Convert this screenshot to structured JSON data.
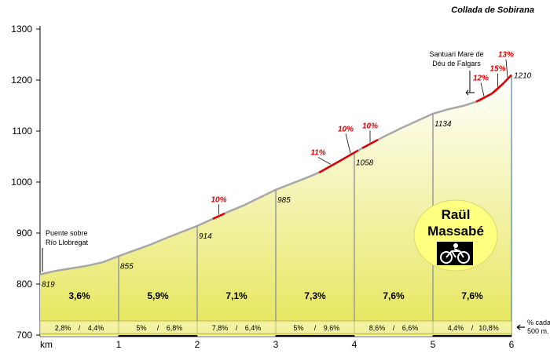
{
  "chart_data": {
    "type": "area",
    "title": "Collada de Sobirana",
    "xlabel": "km",
    "ylim": [
      700,
      1300
    ],
    "xlim": [
      0,
      6
    ],
    "y_ticks": [
      "700",
      "800",
      "900",
      "1000",
      "1100",
      "1200",
      "1300"
    ],
    "x_ticks": [
      "1",
      "2",
      "3",
      "4",
      "5",
      "6"
    ],
    "profile": [
      [
        0,
        819
      ],
      [
        0.2,
        826
      ],
      [
        0.4,
        831
      ],
      [
        0.6,
        836
      ],
      [
        0.8,
        843
      ],
      [
        1,
        855
      ],
      [
        1.2,
        866
      ],
      [
        1.4,
        877
      ],
      [
        1.6,
        890
      ],
      [
        1.8,
        902
      ],
      [
        2,
        914
      ],
      [
        2.2,
        928
      ],
      [
        2.4,
        942
      ],
      [
        2.6,
        955
      ],
      [
        2.8,
        970
      ],
      [
        3,
        985
      ],
      [
        3.2,
        997
      ],
      [
        3.4,
        1009
      ],
      [
        3.6,
        1022
      ],
      [
        3.8,
        1040
      ],
      [
        4,
        1058
      ],
      [
        4.2,
        1075
      ],
      [
        4.4,
        1091
      ],
      [
        4.6,
        1106
      ],
      [
        4.8,
        1120
      ],
      [
        5,
        1134
      ],
      [
        5.2,
        1143
      ],
      [
        5.4,
        1150
      ],
      [
        5.6,
        1160
      ],
      [
        5.8,
        1178
      ],
      [
        6,
        1210
      ]
    ],
    "km_altitudes": [
      "819",
      "855",
      "914",
      "985",
      "1058",
      "1134",
      "1210"
    ],
    "segment_averages": [
      "3,6%",
      "5,9%",
      "7,1%",
      "7,3%",
      "7,6%",
      "7,6%"
    ],
    "half_km_gradients": [
      [
        "2,8%",
        "4,4%"
      ],
      [
        "5%",
        "6,8%"
      ],
      [
        "7,8%",
        "6,4%"
      ],
      [
        "5%",
        "9,6%"
      ],
      [
        "8,6%",
        "6,6%"
      ],
      [
        "4,4%",
        "10,8%"
      ]
    ],
    "steep_sections": [
      {
        "label": "10%",
        "from": 2.2,
        "to": 2.35
      },
      {
        "label": "11%",
        "from": 3.55,
        "to": 3.85
      },
      {
        "label": "10%",
        "from": 3.85,
        "to": 4.05
      },
      {
        "label": "10%",
        "from": 4.1,
        "to": 4.3
      },
      {
        "label": "12%",
        "from": 5.55,
        "to": 5.75
      },
      {
        "label": "15%",
        "from": 5.75,
        "to": 5.9
      },
      {
        "label": "13%",
        "from": 5.9,
        "to": 6
      }
    ],
    "annotations": {
      "start": [
        "Puente sobre",
        "Río Llobregat"
      ],
      "sanctuary": [
        "Santuari Mare de",
        "Déu de Falgars"
      ],
      "legend": [
        "% cada",
        "500 m."
      ]
    },
    "colors": {
      "fill_top": "#ffffff",
      "fill_bottom": "#e6e65a",
      "profile_line": "#a8a8a8",
      "steep": "#e00000",
      "badge": "#ffff80",
      "sanctuary_label": "#003c8c"
    }
  },
  "badge": {
    "line1": "Raül",
    "line2": "Massabé",
    "icon": "cyclist-icon"
  }
}
